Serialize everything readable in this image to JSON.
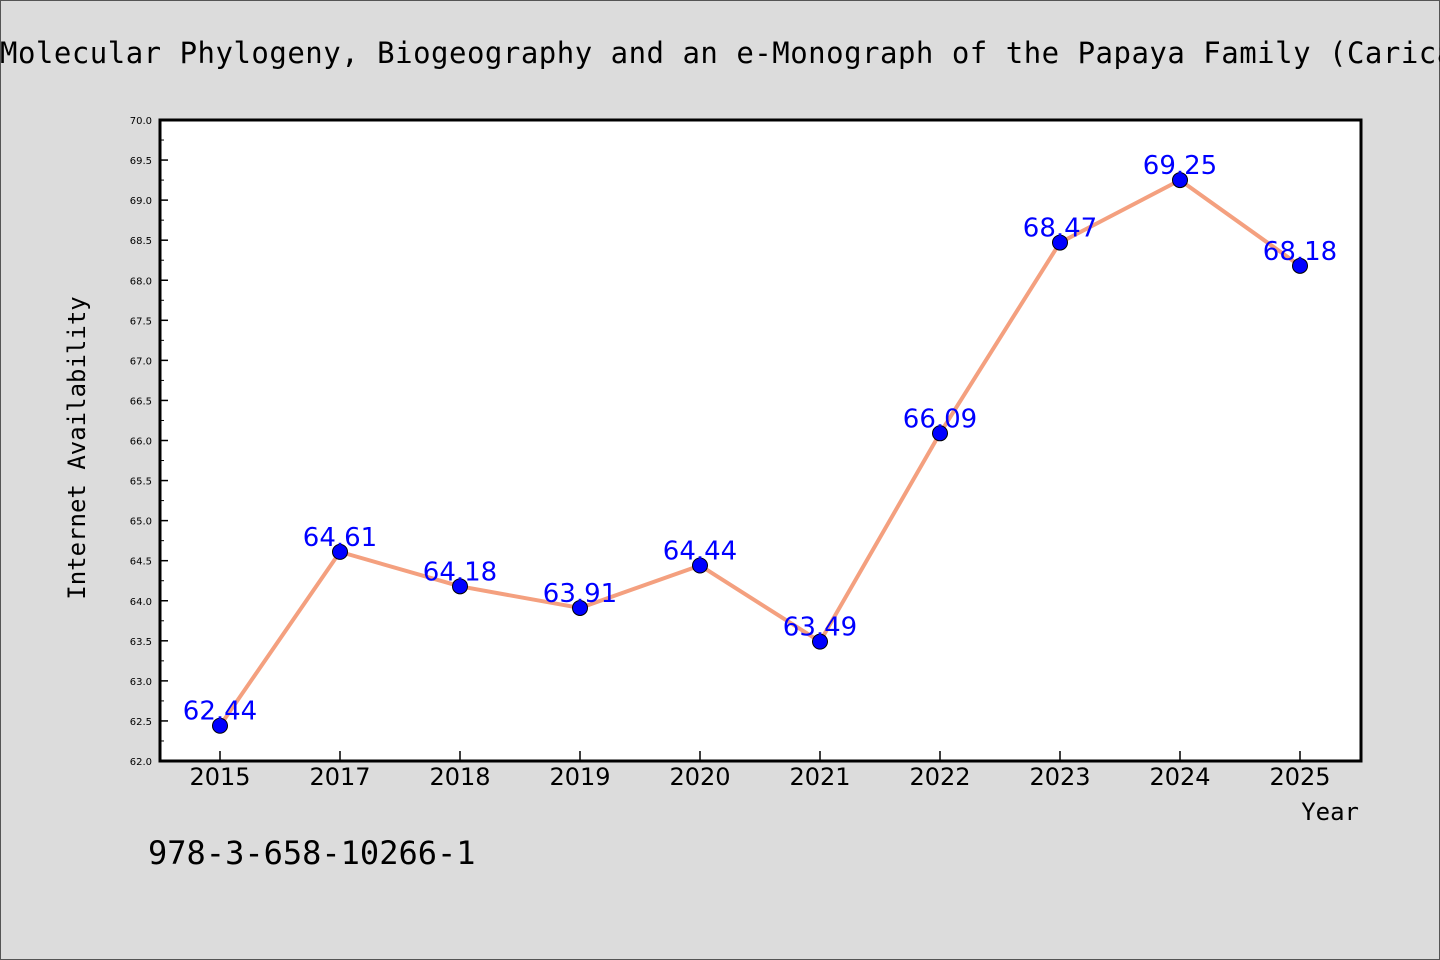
{
  "header": {
    "title": "Molecular Phylogeny, Biogeography and an e-Monograph of the Papaya Family (Caricaceae)"
  },
  "footer": {
    "isbn": "978-3-658-10266-1"
  },
  "chart_data": {
    "type": "line",
    "title": "Molecular Phylogeny, Biogeography and an e-Monograph of the Papaya Family (Caricaceae)",
    "xlabel": "Year",
    "ylabel": "Internet Availability",
    "categories": [
      "2015",
      "2017",
      "2018",
      "2019",
      "2020",
      "2021",
      "2022",
      "2023",
      "2024",
      "2025"
    ],
    "series": [
      {
        "values": [
          62.44,
          64.61,
          64.18,
          63.91,
          64.44,
          63.49,
          66.09,
          68.47,
          69.25,
          68.18
        ]
      }
    ],
    "data_labels": [
      "62.44",
      "64.61",
      "64.18",
      "63.91",
      "64.44",
      "63.49",
      "66.09",
      "68.47",
      "69.25",
      "68.18"
    ],
    "ylim": [
      62.0,
      70.0
    ],
    "yticks": [
      "62.0",
      "62.5",
      "63.0",
      "63.5",
      "64.0",
      "64.5",
      "65.0",
      "65.5",
      "66.0",
      "66.5",
      "67.0",
      "67.5",
      "68.0",
      "68.5",
      "69.0",
      "69.5",
      "70.0"
    ],
    "grid": false,
    "legend": "none",
    "colors": {
      "line": "#f4a07f",
      "marker": "#0000ff",
      "marker_edge": "#000000",
      "data_label": "#0000ff",
      "plot_background": "#ffffff",
      "page_background": "#dcdcdc"
    }
  }
}
